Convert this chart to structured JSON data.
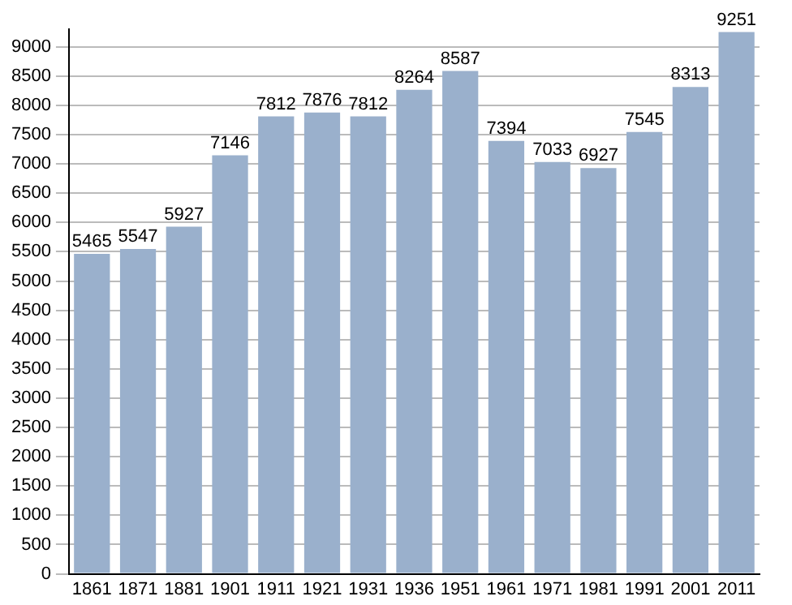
{
  "chart_data": {
    "type": "bar",
    "categories": [
      "1861",
      "1871",
      "1881",
      "1901",
      "1911",
      "1921",
      "1931",
      "1936",
      "1951",
      "1961",
      "1971",
      "1981",
      "1991",
      "2001",
      "2011"
    ],
    "values": [
      5465,
      5547,
      5927,
      7146,
      7812,
      7876,
      7812,
      8264,
      8587,
      7394,
      7033,
      6927,
      7545,
      8313,
      9251
    ],
    "color": "#9ab0cc",
    "ylim": [
      0,
      9300
    ],
    "yticks": [
      0,
      500,
      1000,
      1500,
      2000,
      2500,
      3000,
      3500,
      4000,
      4500,
      5000,
      5500,
      6000,
      6500,
      7000,
      7500,
      8000,
      8500,
      9000
    ],
    "grid": "y",
    "data_labels": true
  }
}
